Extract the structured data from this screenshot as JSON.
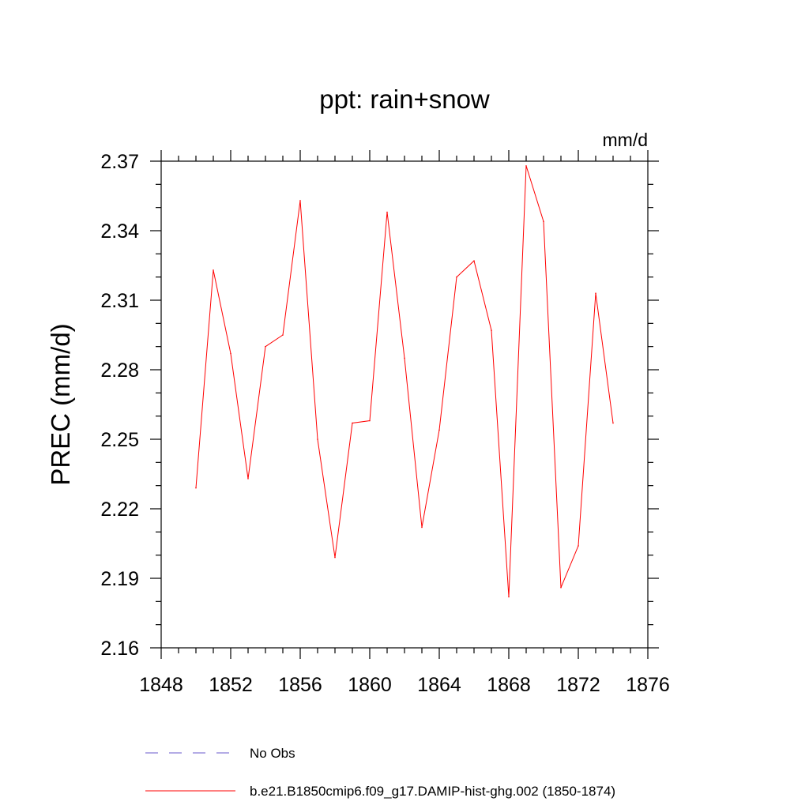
{
  "chart_data": {
    "type": "line",
    "title": "ppt: rain+snow",
    "units": "mm/d",
    "ylabel": "PREC  (mm/d)",
    "xlabel": "",
    "xlim": [
      1848,
      1876
    ],
    "ylim": [
      2.16,
      2.37
    ],
    "xticks": [
      1848,
      1852,
      1856,
      1860,
      1864,
      1868,
      1872,
      1876
    ],
    "yticks": [
      "2.16",
      "2.19",
      "2.22",
      "2.25",
      "2.28",
      "2.31",
      "2.34",
      "2.37"
    ],
    "grid": false,
    "legend_position": "bottom",
    "legend": [
      {
        "name": "No Obs",
        "color": "#6a5acd",
        "style": "dashed"
      },
      {
        "name": "b.e21.B1850cmip6.f09_g17.DAMIP-hist-ghg.002 (1850-1874)",
        "color": "#ff0000",
        "style": "solid"
      }
    ],
    "series": [
      {
        "name": "b.e21.B1850cmip6.f09_g17.DAMIP-hist-ghg.002 (1850-1874)",
        "color": "#ff0000",
        "x": [
          1850,
          1851,
          1852,
          1853,
          1854,
          1855,
          1856,
          1857,
          1858,
          1859,
          1860,
          1861,
          1862,
          1863,
          1864,
          1865,
          1866,
          1867,
          1868,
          1869,
          1870,
          1871,
          1872,
          1873,
          1874
        ],
        "y": [
          2.229,
          2.323,
          2.287,
          2.233,
          2.29,
          2.295,
          2.353,
          2.25,
          2.199,
          2.257,
          2.258,
          2.348,
          2.285,
          2.212,
          2.254,
          2.32,
          2.327,
          2.297,
          2.182,
          2.368,
          2.344,
          2.186,
          2.204,
          2.313,
          2.257
        ]
      }
    ]
  }
}
